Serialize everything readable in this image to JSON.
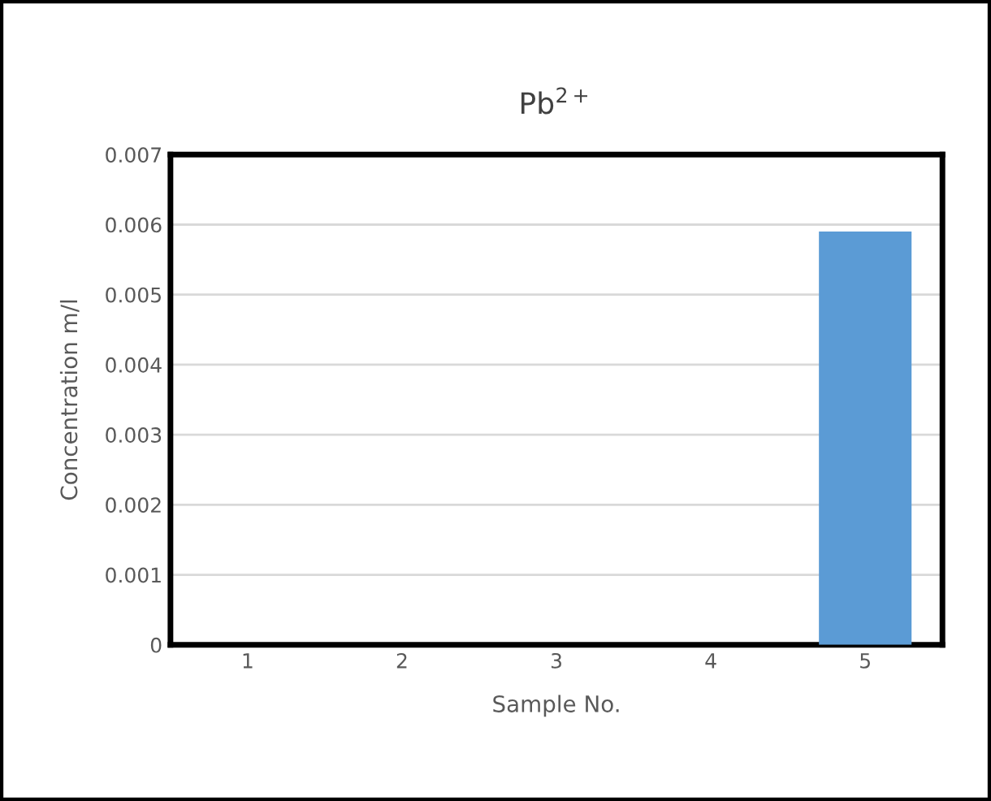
{
  "chart_data": {
    "type": "bar",
    "title": "Pb$^{2+}$",
    "xlabel": "Sample No.",
    "ylabel": "Concentration m/l",
    "categories": [
      "1",
      "2",
      "3",
      "4",
      "5"
    ],
    "series": [
      {
        "color": "#5b9bd5",
        "values": [
          0,
          0,
          0,
          0,
          0.0059
        ]
      }
    ],
    "ylim": [
      0,
      0.007
    ],
    "yticks": [
      "0",
      0.001,
      0.002,
      0.003,
      0.004,
      0.005,
      0.006,
      0.007
    ],
    "grid": "y",
    "legend": false
  }
}
